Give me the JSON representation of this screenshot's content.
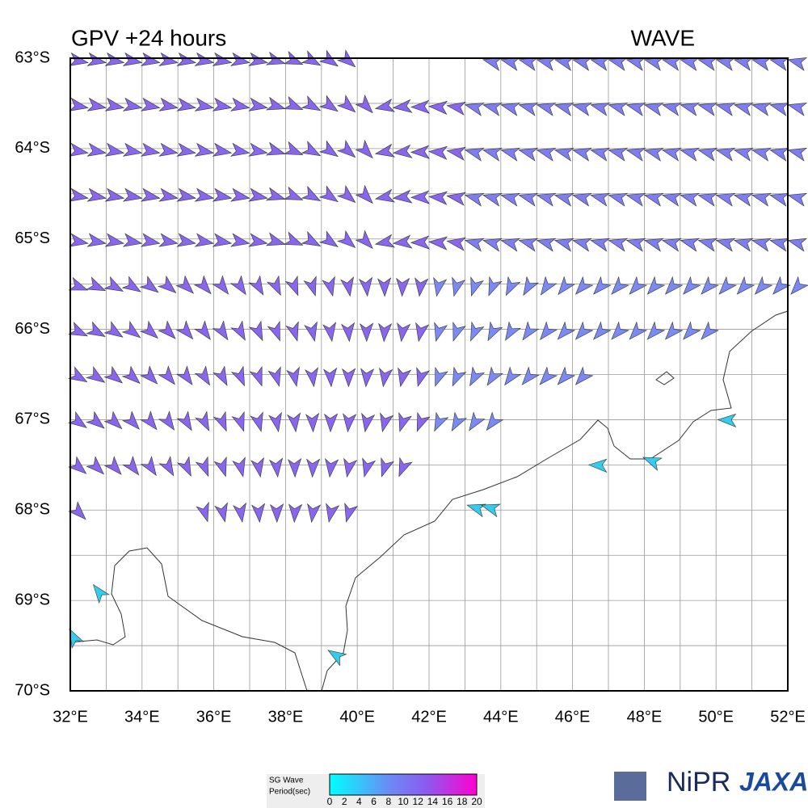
{
  "header": {
    "title": "GPV +24 hours",
    "product": "WAVE"
  },
  "map": {
    "lat_labels": [
      "63°S",
      "64°S",
      "65°S",
      "66°S",
      "67°S",
      "68°S",
      "69°S",
      "70°S"
    ],
    "lon_labels": [
      "32°E",
      "34°E",
      "36°E",
      "38°E",
      "40°E",
      "42°E",
      "44°E",
      "46°E",
      "48°E",
      "50°E",
      "52°E"
    ]
  },
  "colorbar": {
    "label_lines": [
      "SG Wave",
      "Period(sec)"
    ],
    "range": [
      0,
      20
    ],
    "ticks": [
      0,
      2,
      4,
      6,
      8,
      10,
      12,
      14,
      16,
      18,
      20
    ]
  },
  "logos": [
    "NiPR",
    "JAXA"
  ]
}
